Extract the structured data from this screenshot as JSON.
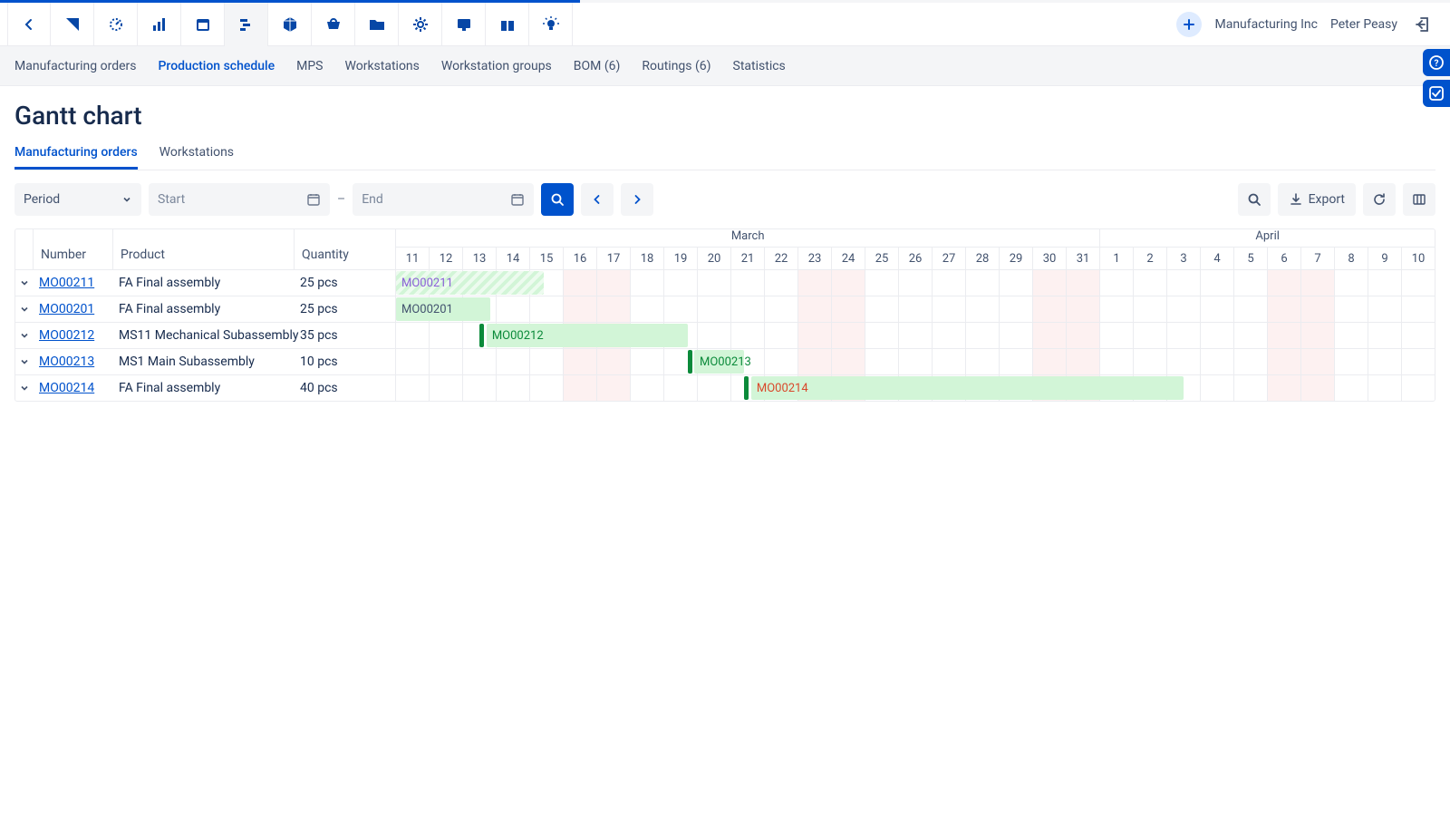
{
  "header": {
    "company": "Manufacturing Inc",
    "user": "Peter Peasy",
    "plus": "+"
  },
  "subnav": {
    "items": [
      "Manufacturing orders",
      "Production schedule",
      "MPS",
      "Workstations",
      "Workstation groups",
      "BOM (6)",
      "Routings (6)",
      "Statistics"
    ],
    "active_index": 1
  },
  "page": {
    "title": "Gantt chart"
  },
  "view_tabs": {
    "items": [
      "Manufacturing orders",
      "Workstations"
    ],
    "active_index": 0
  },
  "filters": {
    "period_label": "Period",
    "start_placeholder": "Start",
    "end_placeholder": "End",
    "export_label": "Export"
  },
  "gantt": {
    "columns": {
      "number": "Number",
      "product": "Product",
      "quantity": "Quantity"
    },
    "timeline": {
      "months": [
        {
          "label": "March",
          "span": 21
        },
        {
          "label": "April",
          "span": 10
        }
      ],
      "days": [
        {
          "n": "11",
          "w": false
        },
        {
          "n": "12",
          "w": false
        },
        {
          "n": "13",
          "w": false
        },
        {
          "n": "14",
          "w": false
        },
        {
          "n": "15",
          "w": false
        },
        {
          "n": "16",
          "w": true
        },
        {
          "n": "17",
          "w": true
        },
        {
          "n": "18",
          "w": false
        },
        {
          "n": "19",
          "w": false
        },
        {
          "n": "20",
          "w": false
        },
        {
          "n": "21",
          "w": false
        },
        {
          "n": "22",
          "w": false
        },
        {
          "n": "23",
          "w": true
        },
        {
          "n": "24",
          "w": true
        },
        {
          "n": "25",
          "w": false
        },
        {
          "n": "26",
          "w": false
        },
        {
          "n": "27",
          "w": false
        },
        {
          "n": "28",
          "w": false
        },
        {
          "n": "29",
          "w": false
        },
        {
          "n": "30",
          "w": true
        },
        {
          "n": "31",
          "w": true
        },
        {
          "n": "1",
          "w": false
        },
        {
          "n": "2",
          "w": false
        },
        {
          "n": "3",
          "w": false
        },
        {
          "n": "4",
          "w": false
        },
        {
          "n": "5",
          "w": false
        },
        {
          "n": "6",
          "w": true
        },
        {
          "n": "7",
          "w": true
        },
        {
          "n": "8",
          "w": false
        },
        {
          "n": "9",
          "w": false
        },
        {
          "n": "10",
          "w": false
        }
      ],
      "total_days": 31
    },
    "rows": [
      {
        "number": "MO00211",
        "product": "FA Final assembly",
        "qty": "25 pcs",
        "bar": {
          "from": 0,
          "to": 4.4,
          "label": "MO00211",
          "bg": "#d2f5d7",
          "bg_pattern": true,
          "text": "#8a60d6",
          "handle": null
        }
      },
      {
        "number": "MO00201",
        "product": "FA Final assembly",
        "qty": "25 pcs",
        "bar": {
          "from": 0,
          "to": 2.8,
          "label": "MO00201",
          "bg": "#d2f5d7",
          "text": "#42526e",
          "handle": null
        }
      },
      {
        "number": "MO00212",
        "product": "MS11 Mechanical Subassembly",
        "qty": "35 pcs",
        "bar": {
          "from": 2.7,
          "to": 8.7,
          "label": "MO00212",
          "bg": "#d2f5d7",
          "text": "#0b8a3a",
          "handle": "#0b8a3a",
          "handle_at": 2.5
        }
      },
      {
        "number": "MO00213",
        "product": "MS1 Main Subassembly",
        "qty": "10 pcs",
        "bar": {
          "from": 8.9,
          "to": 10.4,
          "label": "MO00213",
          "bg": "#d2f5d7",
          "text": "#0b8a3a",
          "handle": "#0b8a3a",
          "handle_at": 8.7
        }
      },
      {
        "number": "MO00214",
        "product": "FA Final assembly",
        "qty": "40 pcs",
        "bar": {
          "from": 10.6,
          "to": 23.5,
          "label": "MO00214",
          "bg": "#d2f5d7",
          "text": "#d9482b",
          "handle": "#0b8a3a",
          "handle_at": 10.4
        }
      }
    ],
    "colors": {
      "weekend_bg": "#fdf1f1",
      "grid": "#ebecf0",
      "primary": "#0052cc",
      "bar_default_bg": "#d2f5d7"
    }
  }
}
